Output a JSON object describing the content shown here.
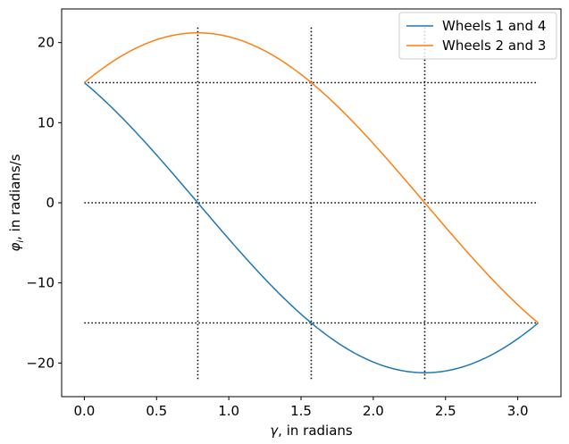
{
  "chart_data": {
    "type": "line",
    "title": "",
    "xlabel_main": "γ",
    "xlabel_rest": ", in radians",
    "ylabel_main": "φ",
    "ylabel_sub": "i",
    "ylabel_rest": ", in radians/s",
    "xlim": [
      -0.157,
      3.299
    ],
    "ylim": [
      -24.2,
      24.2
    ],
    "xticks": [
      0.0,
      0.5,
      1.0,
      1.5,
      2.0,
      2.5,
      3.0
    ],
    "xtick_labels": [
      "0.0",
      "0.5",
      "1.0",
      "1.5",
      "2.0",
      "2.5",
      "3.0"
    ],
    "yticks": [
      -20,
      -10,
      0,
      10,
      20
    ],
    "ytick_labels": [
      "−20",
      "−10",
      "0",
      "10",
      "20"
    ],
    "legend_position": "top-right",
    "series": [
      {
        "name": "Wheels 1 and 4",
        "color": "#1f77b4",
        "function": "15*(cos(x)-sin(x))",
        "x_range": [
          0,
          3.14159
        ]
      },
      {
        "name": "Wheels 2 and 3",
        "color": "#ff7f0e",
        "function": "15*(cos(x)+sin(x))",
        "x_range": [
          0,
          3.14159
        ]
      }
    ],
    "reference_lines": {
      "style": "dotted",
      "color": "#000000",
      "horizontal": [
        {
          "y": 15,
          "x_range": [
            0,
            3.14159
          ]
        },
        {
          "y": 0,
          "x_range": [
            0,
            3.14159
          ]
        },
        {
          "y": -15,
          "x_range": [
            0,
            3.14159
          ]
        }
      ],
      "vertical": [
        {
          "x": 0.7854,
          "y_range": [
            -22,
            22
          ]
        },
        {
          "x": 1.5708,
          "y_range": [
            -22,
            22
          ]
        },
        {
          "x": 2.3562,
          "y_range": [
            -22,
            22
          ]
        }
      ]
    }
  }
}
